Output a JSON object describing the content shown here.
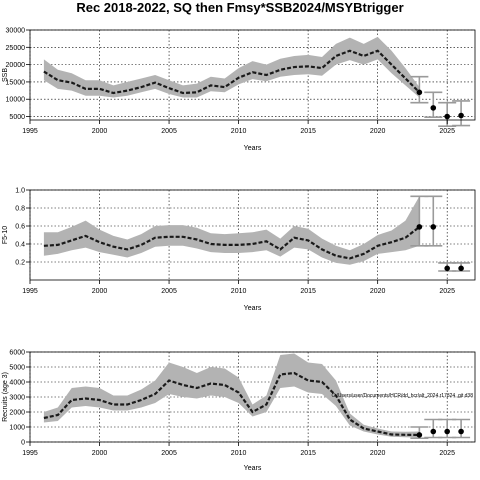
{
  "title": "Rec 2018-2022, SQ then Fmsy*SSB2024/MSYBtrigger",
  "chart_data": [
    {
      "type": "line",
      "ylabel": "SSB",
      "xlabel": "Years",
      "xlim": [
        1995,
        2027
      ],
      "ylim": [
        4000,
        30000
      ],
      "xticks": [
        1995,
        2000,
        2005,
        2010,
        2015,
        2020,
        2025
      ],
      "yticks": [
        5000,
        10000,
        15000,
        20000,
        25000,
        30000
      ],
      "grid": true,
      "x": [
        1996,
        1997,
        1998,
        1999,
        2000,
        2001,
        2002,
        2003,
        2004,
        2005,
        2006,
        2007,
        2008,
        2009,
        2010,
        2011,
        2012,
        2013,
        2014,
        2015,
        2016,
        2017,
        2018,
        2019,
        2020,
        2021,
        2022,
        2023
      ],
      "median": [
        18000,
        15500,
        14800,
        13000,
        13000,
        11800,
        12500,
        13500,
        14800,
        13200,
        11800,
        12000,
        14000,
        13500,
        16200,
        17800,
        17000,
        18500,
        19300,
        19500,
        19000,
        22500,
        24000,
        22500,
        24000,
        20000,
        16000,
        12000
      ],
      "lower": [
        15500,
        13000,
        12500,
        11000,
        11000,
        10500,
        11000,
        12000,
        13000,
        11500,
        10500,
        10500,
        12300,
        12000,
        14300,
        15800,
        15200,
        16500,
        17000,
        17200,
        16800,
        20000,
        21300,
        20000,
        21500,
        17500,
        14000,
        10500
      ],
      "upper": [
        21500,
        18500,
        17500,
        15500,
        15500,
        14000,
        15000,
        16000,
        17000,
        15500,
        14000,
        14500,
        16500,
        16000,
        19000,
        21000,
        20000,
        21700,
        22500,
        22800,
        22200,
        26000,
        27800,
        26000,
        28000,
        24000,
        19000,
        13500
      ],
      "projection": [
        {
          "x": 2023,
          "y": 12000,
          "lo": 9000,
          "hi": 16500
        },
        {
          "x": 2024,
          "y": 7500,
          "lo": 4800,
          "hi": 12000
        },
        {
          "x": 2025,
          "y": 5000,
          "lo": 2200,
          "hi": 9000
        },
        {
          "x": 2026,
          "y": 5300,
          "lo": 2400,
          "hi": 9500
        }
      ]
    },
    {
      "type": "line",
      "ylabel": "F5-10",
      "xlabel": "Years",
      "xlim": [
        1995,
        2027
      ],
      "ylim": [
        0.0,
        1.0
      ],
      "xticks": [
        1995,
        2000,
        2005,
        2010,
        2015,
        2020,
        2025
      ],
      "yticks": [
        0.2,
        0.4,
        0.6,
        0.8,
        1.0
      ],
      "grid": true,
      "x": [
        1996,
        1997,
        1998,
        1999,
        2000,
        2001,
        2002,
        2003,
        2004,
        2005,
        2006,
        2007,
        2008,
        2009,
        2010,
        2011,
        2012,
        2013,
        2014,
        2015,
        2016,
        2017,
        2018,
        2019,
        2020,
        2021,
        2022,
        2023
      ],
      "median": [
        0.38,
        0.39,
        0.44,
        0.49,
        0.42,
        0.37,
        0.34,
        0.39,
        0.47,
        0.48,
        0.48,
        0.45,
        0.4,
        0.39,
        0.39,
        0.4,
        0.43,
        0.34,
        0.47,
        0.44,
        0.34,
        0.27,
        0.24,
        0.29,
        0.38,
        0.42,
        0.47,
        0.59
      ],
      "lower": [
        0.27,
        0.29,
        0.33,
        0.36,
        0.31,
        0.28,
        0.25,
        0.3,
        0.37,
        0.38,
        0.38,
        0.35,
        0.31,
        0.3,
        0.3,
        0.31,
        0.33,
        0.26,
        0.36,
        0.34,
        0.25,
        0.19,
        0.17,
        0.21,
        0.29,
        0.31,
        0.33,
        0.38
      ],
      "upper": [
        0.53,
        0.53,
        0.59,
        0.66,
        0.56,
        0.49,
        0.45,
        0.51,
        0.6,
        0.61,
        0.61,
        0.58,
        0.52,
        0.51,
        0.52,
        0.53,
        0.56,
        0.46,
        0.6,
        0.57,
        0.46,
        0.38,
        0.33,
        0.4,
        0.5,
        0.55,
        0.66,
        0.93
      ],
      "projection": [
        {
          "x": 2023,
          "y": 0.59,
          "lo": 0.38,
          "hi": 0.93
        },
        {
          "x": 2024,
          "y": 0.59,
          "lo": 0.38,
          "hi": 0.93
        },
        {
          "x": 2025,
          "y": 0.13,
          "lo": 0.1,
          "hi": 0.19
        },
        {
          "x": 2026,
          "y": 0.13,
          "lo": 0.1,
          "hi": 0.19
        }
      ]
    },
    {
      "type": "line",
      "ylabel": "Recruits (age 3)",
      "xlabel": "Years",
      "xlim": [
        1995,
        2027
      ],
      "ylim": [
        0,
        6000
      ],
      "xticks": [
        1995,
        2000,
        2005,
        2010,
        2015,
        2020,
        2025
      ],
      "yticks": [
        0,
        1000,
        2000,
        3000,
        4000,
        5000,
        6000
      ],
      "grid": true,
      "annotation": "C:/Users/user/Documents/HCR/dd_hcr/alt_2024.r17324, git d38",
      "x": [
        1996,
        1997,
        1998,
        1999,
        2000,
        2001,
        2002,
        2003,
        2004,
        2005,
        2006,
        2007,
        2008,
        2009,
        2010,
        2011,
        2012,
        2013,
        2014,
        2015,
        2016,
        2017,
        2018,
        2019,
        2020,
        2021,
        2022,
        2023
      ],
      "median": [
        1600,
        1800,
        2800,
        2900,
        2800,
        2500,
        2500,
        2800,
        3200,
        4100,
        3800,
        3600,
        3900,
        3800,
        3300,
        2000,
        2500,
        4500,
        4600,
        4100,
        4000,
        3100,
        1500,
        900,
        700,
        500,
        480,
        470
      ],
      "lower": [
        1300,
        1400,
        2300,
        2400,
        2300,
        2100,
        2100,
        2300,
        2600,
        3200,
        3000,
        2900,
        3100,
        3000,
        2600,
        1700,
        2000,
        3600,
        3700,
        3300,
        3200,
        2400,
        1100,
        700,
        500,
        350,
        320,
        300
      ],
      "upper": [
        2000,
        2300,
        3600,
        3700,
        3600,
        3100,
        3100,
        3500,
        4100,
        5300,
        5000,
        4600,
        5000,
        4900,
        4300,
        2500,
        3100,
        5800,
        5900,
        5300,
        5200,
        4100,
        1900,
        1150,
        900,
        700,
        680,
        700
      ],
      "projection": [
        {
          "x": 2023,
          "y": 470,
          "lo": 250,
          "hi": 1000
        },
        {
          "x": 2024,
          "y": 700,
          "lo": 300,
          "hi": 1500
        },
        {
          "x": 2025,
          "y": 700,
          "lo": 300,
          "hi": 1500
        },
        {
          "x": 2026,
          "y": 700,
          "lo": 300,
          "hi": 1500
        }
      ]
    }
  ]
}
